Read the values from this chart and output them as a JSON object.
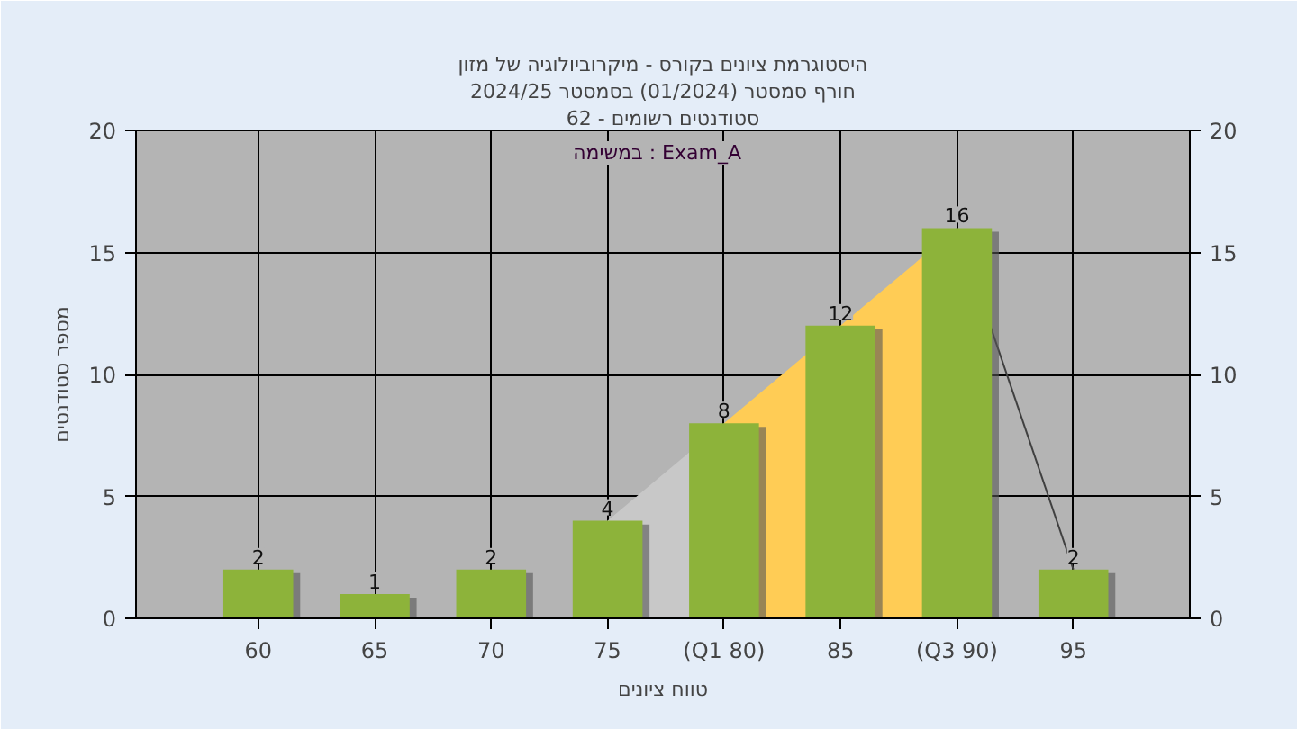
{
  "chart_data": {
    "type": "bar",
    "title": "היסטוגרמת ציונים בקורס - מיקרוביולוגיה של מזון",
    "subtitle": [
      "2024/25 חורף סמסטר (01/2024) בסמסטר",
      "סטודנטים רשומים - 62"
    ],
    "annotations": [
      "במשימה : Exam_A"
    ],
    "xlabel": "טווח ציונים",
    "ylabel": "מספר סטודנטים",
    "categories": [
      "60",
      "65",
      "70",
      "75",
      "(Q1 80)",
      "85",
      "(Q3 90)",
      "95"
    ],
    "series": [
      {
        "type": "area",
        "color": "#c8c8c8",
        "values": [
          null,
          null,
          null,
          4,
          8,
          null,
          null,
          null
        ]
      },
      {
        "type": "area",
        "color": "#ffcc55",
        "values": [
          null,
          null,
          null,
          null,
          8,
          12,
          16,
          null
        ]
      },
      {
        "type": "line",
        "color": "#404040",
        "values": [
          null,
          null,
          null,
          null,
          null,
          null,
          16,
          2
        ]
      },
      {
        "color": "#8db33a",
        "values": [
          2,
          1,
          2,
          4,
          8,
          12,
          16,
          2
        ],
        "value_labels": [
          "2",
          "1",
          "2",
          "4",
          "8",
          "12",
          "16",
          "2"
        ]
      }
    ],
    "ylim": [
      0,
      20
    ],
    "yticks": [
      0,
      5,
      10,
      15,
      20
    ],
    "y2lim": [
      0,
      20
    ],
    "y2ticks": [
      0,
      5,
      10,
      15,
      20
    ],
    "grid": true
  }
}
